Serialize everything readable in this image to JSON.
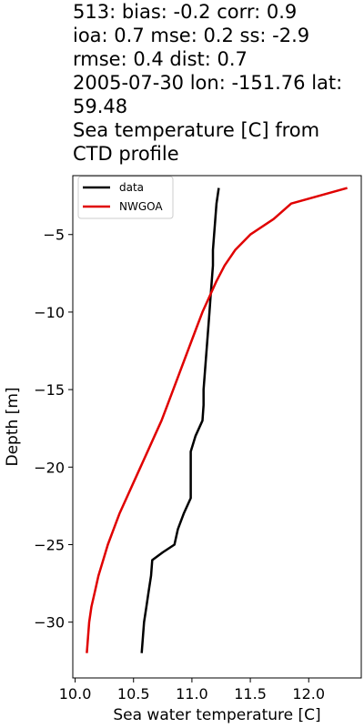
{
  "chart_data": {
    "type": "line",
    "title_lines": [
      "513: bias: -0.2  corr: 0.9",
      "ioa: 0.7  mse: 0.2  ss: -2.9",
      "rmse: 0.4  dist: 0.7",
      "2005-07-30 lon: -151.76 lat:",
      "59.48",
      "Sea temperature [C] from",
      "CTD profile"
    ],
    "xlabel": "Sea water temperature [C]",
    "ylabel": "Depth [m]",
    "xlim": [
      9.98,
      12.45
    ],
    "ylim": [
      -33.6,
      -1.2
    ],
    "xticks": [
      10.0,
      10.5,
      11.0,
      11.5,
      12.0
    ],
    "xtick_labels": [
      "10.0",
      "10.5",
      "11.0",
      "11.5",
      "12.0"
    ],
    "yticks": [
      -5,
      -10,
      -15,
      -20,
      -25,
      -30
    ],
    "ytick_labels": [
      "−5",
      "−10",
      "−15",
      "−20",
      "−25",
      "−30"
    ],
    "legend_position": "top-left",
    "series": [
      {
        "name": "data",
        "color": "#000000",
        "points": [
          [
            11.23,
            -2
          ],
          [
            11.21,
            -3
          ],
          [
            11.2,
            -4
          ],
          [
            11.19,
            -5
          ],
          [
            11.18,
            -6
          ],
          [
            11.18,
            -7
          ],
          [
            11.17,
            -8
          ],
          [
            11.16,
            -9
          ],
          [
            11.15,
            -10
          ],
          [
            11.14,
            -11
          ],
          [
            11.13,
            -12
          ],
          [
            11.12,
            -13
          ],
          [
            11.11,
            -14
          ],
          [
            11.1,
            -15
          ],
          [
            11.1,
            -16
          ],
          [
            11.09,
            -17
          ],
          [
            11.03,
            -18
          ],
          [
            10.99,
            -19
          ],
          [
            10.99,
            -20
          ],
          [
            10.99,
            -21
          ],
          [
            10.99,
            -22
          ],
          [
            10.93,
            -23
          ],
          [
            10.88,
            -24
          ],
          [
            10.85,
            -25
          ],
          [
            10.75,
            -25.5
          ],
          [
            10.66,
            -26
          ],
          [
            10.65,
            -27
          ],
          [
            10.63,
            -28
          ],
          [
            10.61,
            -29
          ],
          [
            10.59,
            -30
          ],
          [
            10.58,
            -31
          ],
          [
            10.57,
            -32
          ]
        ]
      },
      {
        "name": "NWGOA",
        "color": "#e00000",
        "points": [
          [
            12.33,
            -2
          ],
          [
            11.85,
            -3
          ],
          [
            11.7,
            -4
          ],
          [
            11.5,
            -5
          ],
          [
            11.37,
            -6
          ],
          [
            11.28,
            -7
          ],
          [
            11.21,
            -8
          ],
          [
            11.15,
            -9
          ],
          [
            11.09,
            -10
          ],
          [
            11.04,
            -11
          ],
          [
            10.99,
            -12
          ],
          [
            10.94,
            -13
          ],
          [
            10.89,
            -14
          ],
          [
            10.84,
            -15
          ],
          [
            10.79,
            -16
          ],
          [
            10.74,
            -17
          ],
          [
            10.68,
            -18
          ],
          [
            10.62,
            -19
          ],
          [
            10.56,
            -20
          ],
          [
            10.5,
            -21
          ],
          [
            10.44,
            -22
          ],
          [
            10.38,
            -23
          ],
          [
            10.33,
            -24
          ],
          [
            10.28,
            -25
          ],
          [
            10.24,
            -26
          ],
          [
            10.2,
            -27
          ],
          [
            10.17,
            -28
          ],
          [
            10.14,
            -29
          ],
          [
            10.12,
            -30
          ],
          [
            10.11,
            -31
          ],
          [
            10.1,
            -32
          ]
        ]
      }
    ]
  }
}
